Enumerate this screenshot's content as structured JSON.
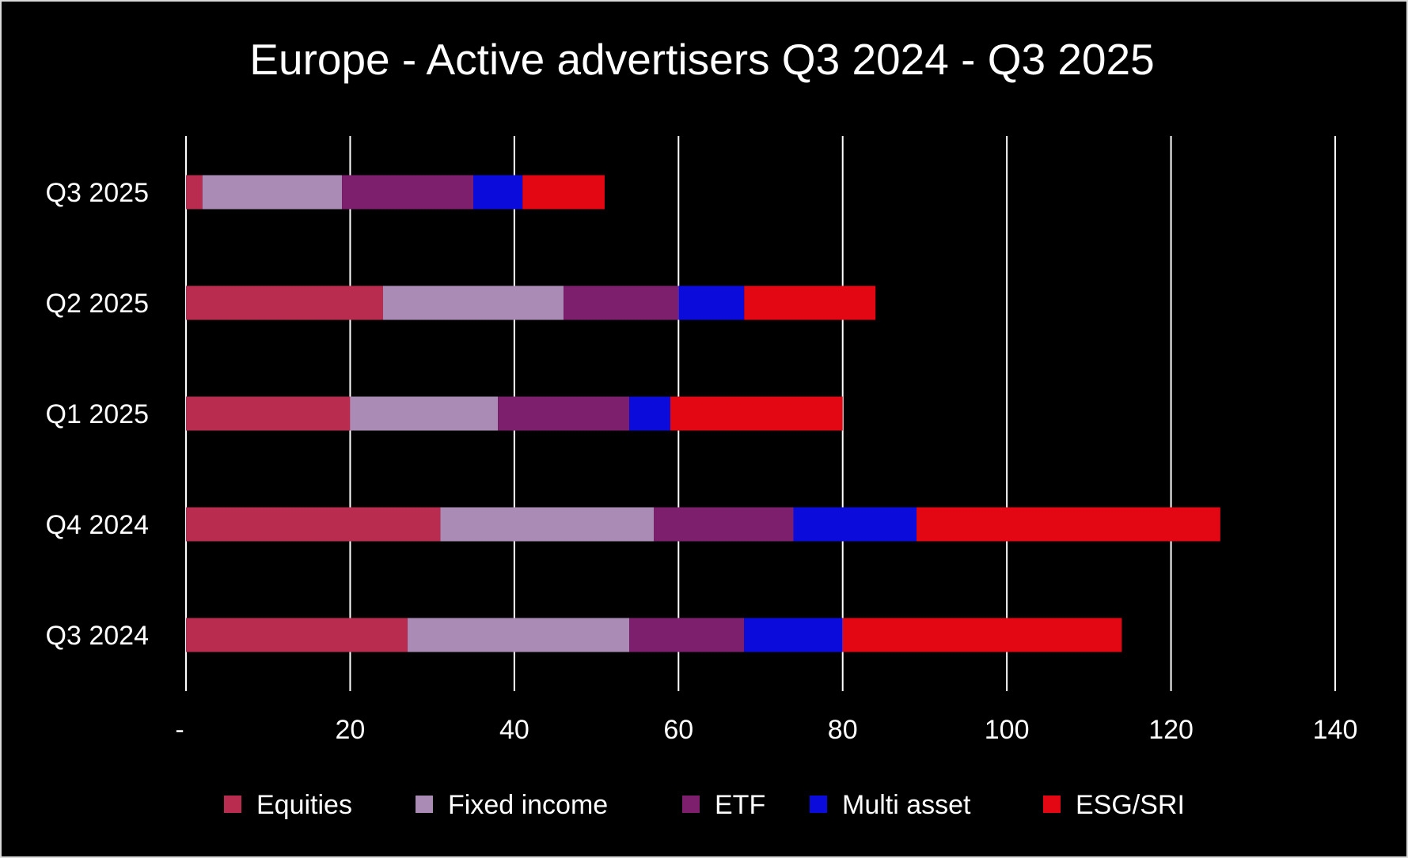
{
  "chart_data": {
    "type": "bar",
    "orientation": "horizontal",
    "stacked": true,
    "title": "Europe - Active advertisers Q3 2024 - Q3 2025",
    "categories": [
      "Q3 2025",
      "Q2 2025",
      "Q1 2025",
      "Q4 2024",
      "Q3 2024"
    ],
    "series": [
      {
        "name": "Equities",
        "color": "#B92C50",
        "values": [
          2,
          24,
          20,
          31,
          27
        ]
      },
      {
        "name": "Fixed income",
        "color": "#A98BB5",
        "values": [
          17,
          22,
          18,
          26,
          27
        ]
      },
      {
        "name": "ETF",
        "color": "#7E1F6E",
        "values": [
          16,
          14,
          16,
          17,
          14
        ]
      },
      {
        "name": "Multi asset",
        "color": "#0B0BDB",
        "values": [
          6,
          8,
          5,
          15,
          12
        ]
      },
      {
        "name": "ESG/SRI",
        "color": "#E30613",
        "values": [
          10,
          16,
          21,
          37,
          34
        ]
      }
    ],
    "xlim": [
      0,
      140
    ],
    "x_ticks": [
      0,
      20,
      40,
      60,
      80,
      100,
      120,
      140
    ],
    "x_tick_labels": [
      "-",
      "20",
      "40",
      "60",
      "80",
      "100",
      "120",
      "140"
    ],
    "grid": "vertical",
    "legend": "bottom",
    "background": "#000000",
    "text_color": "#FFFFFF"
  }
}
